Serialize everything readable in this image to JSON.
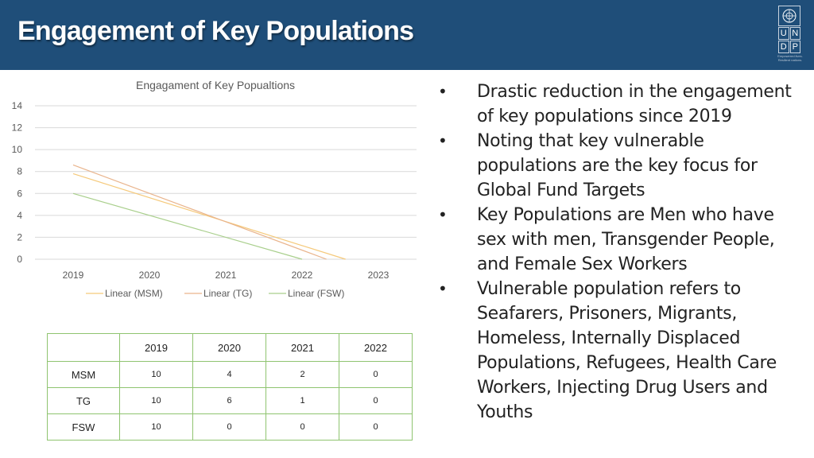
{
  "header": {
    "title": "Engagement of Key Populations"
  },
  "logo": {
    "letters": [
      "U",
      "N",
      "D",
      "P"
    ],
    "subtitle": "Empowered lives. Resilient nations."
  },
  "bullets": [
    "Drastic reduction in the engagement of key populations since 2019",
    "Noting that key vulnerable populations are the key focus for Global Fund Targets",
    "Key Populations are Men who have sex with men, Transgender People, and Female Sex Workers",
    "Vulnerable population refers to Seafarers, Prisoners, Migrants, Homeless, Internally Displaced Populations, Refugees, Health Care Workers, Injecting Drug Users and Youths"
  ],
  "bullet_symbol": "•",
  "table": {
    "columns": [
      "",
      "2019",
      "2020",
      "2021",
      "2022"
    ],
    "rows": [
      {
        "label": "MSM",
        "values": [
          "10",
          "4",
          "2",
          "0"
        ]
      },
      {
        "label": "TG",
        "values": [
          "10",
          "6",
          "1",
          "0"
        ]
      },
      {
        "label": "FSW",
        "values": [
          "10",
          "0",
          "0",
          "0"
        ]
      }
    ]
  },
  "chart_data": {
    "type": "line",
    "title": "Engagament of Key Popualtions",
    "categories": [
      "2019",
      "2020",
      "2021",
      "2022",
      "2023"
    ],
    "ylim": [
      0,
      14
    ],
    "yticks": [
      0,
      2,
      4,
      6,
      8,
      10,
      12,
      14
    ],
    "grid": true,
    "legend_position": "bottom",
    "series": [
      {
        "name": "Linear (MSM)",
        "color": "#f5c97a",
        "points": [
          [
            0,
            7.8
          ],
          [
            3.57,
            0
          ]
        ]
      },
      {
        "name": "Linear (TG)",
        "color": "#e9b48c",
        "points": [
          [
            0,
            8.6
          ],
          [
            3.32,
            0
          ]
        ]
      },
      {
        "name": "Linear (FSW)",
        "color": "#a9cf8c",
        "points": [
          [
            0,
            6.0
          ],
          [
            3.0,
            0
          ]
        ]
      }
    ]
  },
  "colors": {
    "header_bg": "#1f4e79",
    "grid": "#d9d9d9",
    "table_border": "#8fc470"
  }
}
